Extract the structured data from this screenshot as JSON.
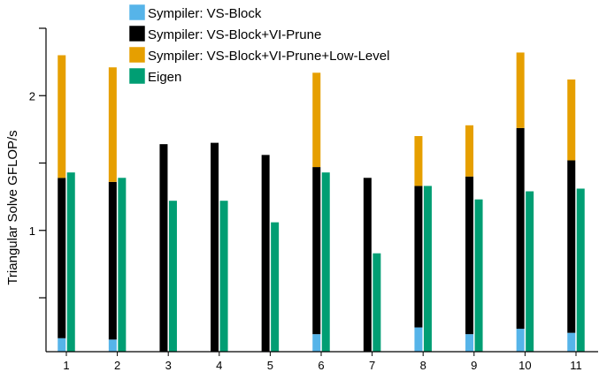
{
  "chart_data": {
    "type": "bar",
    "subtype": "stacked-and-grouped",
    "title": "",
    "xlabel": "",
    "ylabel": "Triangular Solve GFLOP/s",
    "categories": [
      "1",
      "2",
      "3",
      "4",
      "5",
      "6",
      "7",
      "8",
      "9",
      "10",
      "11"
    ],
    "ylim": [
      0.1,
      2.5
    ],
    "yticks": [
      0.5,
      1,
      1.5,
      2,
      2.5
    ],
    "ytick_labels": [
      "",
      "1",
      "",
      "2",
      ""
    ],
    "grid": false,
    "legend_position": "top",
    "series": [
      {
        "name": "Sympiler: VS-Block",
        "color": "#56b4e9",
        "stack": "sympiler",
        "values": [
          0.2,
          0.19,
          0.0,
          0.0,
          0.0,
          0.23,
          0.0,
          0.28,
          0.23,
          0.27,
          0.24
        ]
      },
      {
        "name": "Sympiler: VS-Block+VI-Prune",
        "color": "#000000",
        "stack": "sympiler",
        "values": [
          1.39,
          1.36,
          1.64,
          1.65,
          1.56,
          1.47,
          1.39,
          1.33,
          1.4,
          1.76,
          1.52
        ]
      },
      {
        "name": "Sympiler: VS-Block+VI-Prune+Low-Level",
        "color": "#e69f00",
        "stack": "sympiler",
        "values": [
          2.3,
          2.21,
          0.0,
          0.0,
          0.0,
          2.17,
          0.0,
          1.7,
          1.78,
          2.32,
          2.12
        ]
      },
      {
        "name": "Eigen",
        "color": "#009e73",
        "stack": "eigen",
        "values": [
          1.43,
          1.39,
          1.22,
          1.22,
          1.06,
          1.43,
          0.83,
          1.33,
          1.23,
          1.29,
          1.31
        ]
      }
    ]
  }
}
